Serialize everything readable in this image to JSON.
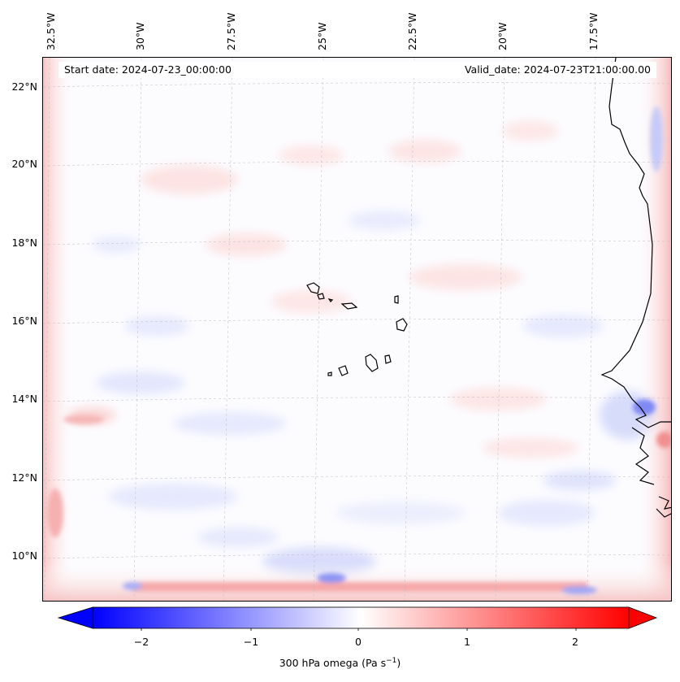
{
  "header": {
    "start_date": "Start date: 2024-07-23_00:00:00",
    "valid_date": "Valid_date: 2024-07-23T21:00:00.00"
  },
  "map": {
    "field": "300 hPa omega",
    "longitude_labels": [
      "32.5°W",
      "30°W",
      "27.5°W",
      "25°W",
      "22.5°W",
      "20°W",
      "17.5°W"
    ],
    "latitude_labels": [
      "22°N",
      "20°N",
      "18°N",
      "16°N",
      "14°N",
      "12°N",
      "10°N"
    ],
    "extent": {
      "lon_min": -32.9,
      "lon_max": -15.8,
      "lat_min": 8.9,
      "lat_max": 22.8
    },
    "gridlines": true,
    "coastline_color": "#000000"
  },
  "colorbar": {
    "label_main": "300 hPa omega (Pa s",
    "label_exp": "−1",
    "label_end": ")",
    "ticks": [
      {
        "value": -2,
        "label": "−2"
      },
      {
        "value": -1,
        "label": "−1"
      },
      {
        "value": 0,
        "label": "0"
      },
      {
        "value": 1,
        "label": "1"
      },
      {
        "value": 2,
        "label": "2"
      }
    ],
    "vmin": -2.5,
    "vmax": 2.5,
    "extend": "both",
    "cmap": "bwr",
    "low_color": "#0000ff",
    "mid_color": "#ffffff",
    "high_color": "#ff0000"
  }
}
